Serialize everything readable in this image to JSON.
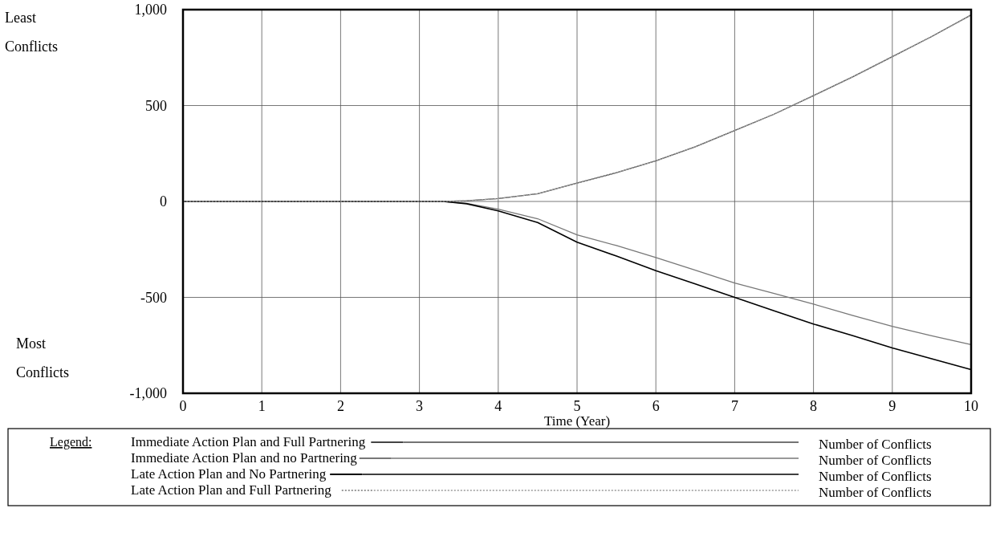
{
  "chart_data": {
    "type": "line",
    "xlabel": "Time (Year)",
    "legend_title": "Legend:",
    "x": [
      0,
      3.3,
      3.6,
      4,
      4.5,
      5,
      5.5,
      6,
      6.5,
      7,
      7.5,
      8,
      8.5,
      9,
      9.5,
      10
    ],
    "series": [
      {
        "name": "Immediate Action Plan and Full Partnering",
        "color": "#444444",
        "line_style": "solid",
        "values": [
          0,
          0,
          4,
          15,
          40,
          96,
          150,
          212,
          285,
          370,
          455,
          552,
          650,
          755,
          860,
          972
        ]
      },
      {
        "name": "Immediate Action Plan and no Partnering",
        "color": "#777777",
        "line_style": "solid",
        "values": [
          0,
          0,
          -10,
          -40,
          -90,
          -174,
          -230,
          -292,
          -358,
          -425,
          -480,
          -535,
          -595,
          -651,
          -700,
          -746
        ]
      },
      {
        "name": "Late Action Plan and No Partnering",
        "color": "#000000",
        "line_style": "solid",
        "values": [
          0,
          0,
          -12,
          -49,
          -110,
          -212,
          -285,
          -361,
          -430,
          -500,
          -570,
          -639,
          -700,
          -764,
          -820,
          -877
        ]
      },
      {
        "name": "Late Action Plan and Full Partnering",
        "color": "#999999",
        "line_style": "dotted",
        "values": [
          0,
          0,
          4,
          15,
          40,
          96,
          150,
          212,
          285,
          370,
          455,
          552,
          650,
          755,
          860,
          972
        ]
      }
    ],
    "xlim": [
      0,
      10
    ],
    "xticks": [
      0,
      1,
      2,
      3,
      4,
      5,
      6,
      7,
      8,
      9,
      10
    ],
    "ylim": [
      -1000,
      1000
    ],
    "yticks": [
      {
        "value": -1000,
        "label": "-1,000"
      },
      -500,
      0,
      500,
      {
        "value": 1000,
        "label": "1,000"
      }
    ],
    "grid": true,
    "legend": "bottom",
    "marker": "none",
    "annotations": [
      "Least Conflicts",
      "Most Conflicts",
      "Number of Conflicts",
      "Number of Conflicts",
      "Number of Conflicts",
      "Number of Conflicts"
    ]
  }
}
